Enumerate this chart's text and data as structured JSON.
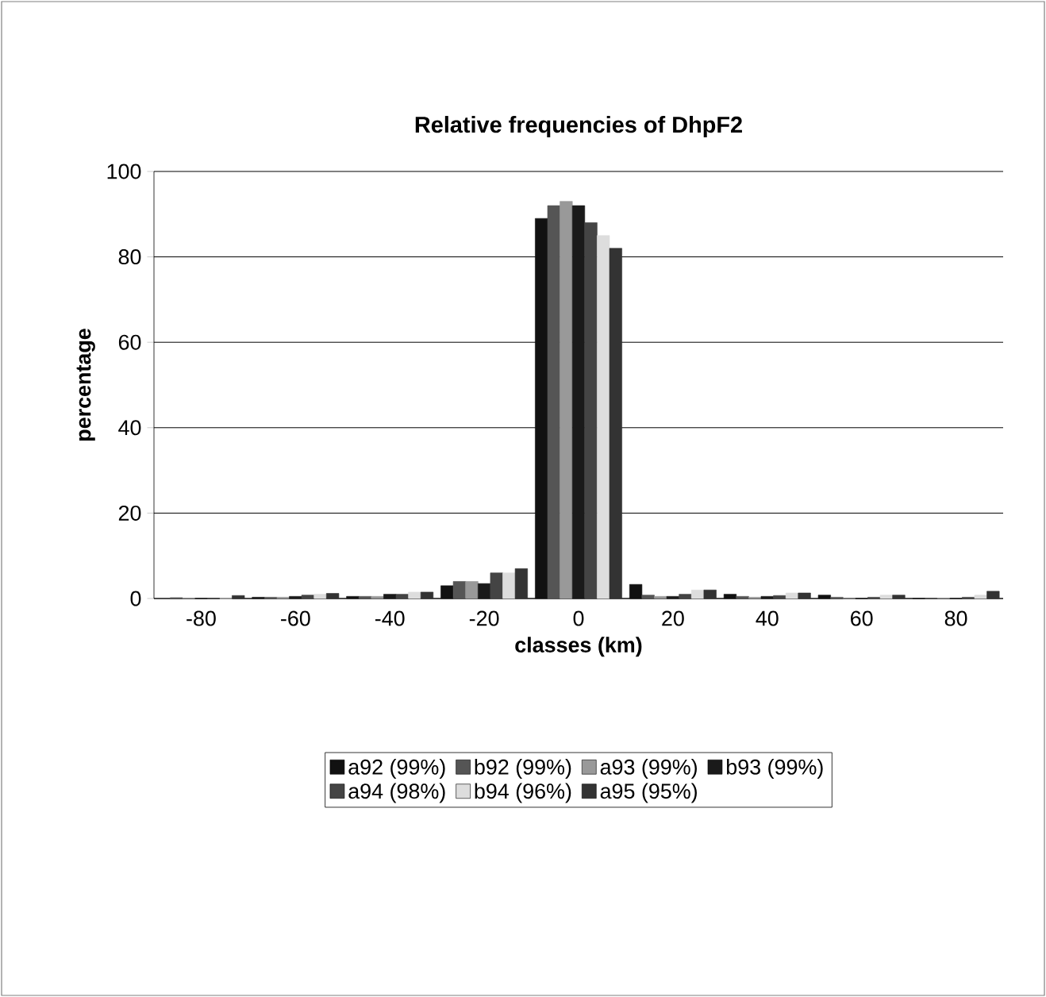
{
  "chart_data": {
    "type": "bar",
    "title": "Relative frequencies of DhpF2",
    "xlabel": "classes (km)",
    "ylabel": "percentage",
    "categories": [
      "-80",
      "-60",
      "-40",
      "-20",
      "0",
      "20",
      "40",
      "60",
      "80"
    ],
    "ylim": [
      0,
      100
    ],
    "yticks": [
      0,
      20,
      40,
      60,
      80,
      100
    ],
    "grid": "y",
    "legend": "bottom",
    "series": [
      {
        "name": "a92 (99%)",
        "color": "#111111",
        "values": [
          null,
          0.3,
          0.5,
          3,
          89,
          3.3,
          1,
          0.8,
          0
        ]
      },
      {
        "name": "b92 (99%)",
        "color": "#555555",
        "values": [
          0.2,
          0.3,
          0.5,
          4,
          92,
          0.8,
          0.5,
          0.3,
          0
        ]
      },
      {
        "name": "a93 (99%)",
        "color": "#999999",
        "values": [
          0.1,
          0.3,
          0.5,
          4,
          93,
          0.5,
          0.3,
          0,
          0.1
        ]
      },
      {
        "name": "b93 (99%)",
        "color": "#1a1a1a",
        "values": [
          0,
          0.5,
          1,
          3.5,
          92,
          0.5,
          0.5,
          0,
          0
        ]
      },
      {
        "name": "a94 (98%)",
        "color": "#444444",
        "values": [
          0,
          0.8,
          1,
          6,
          88,
          1,
          0.7,
          0.3,
          0.3
        ]
      },
      {
        "name": "b94 (96%)",
        "color": "#dddddd",
        "values": [
          0,
          1,
          1.5,
          6,
          85,
          2,
          1.3,
          0.8,
          0.8
        ]
      },
      {
        "name": "a95 (95%)",
        "color": "#333333",
        "values": [
          0.7,
          1.2,
          1.5,
          7,
          82,
          2,
          1.3,
          0.8,
          1.7
        ]
      }
    ]
  }
}
